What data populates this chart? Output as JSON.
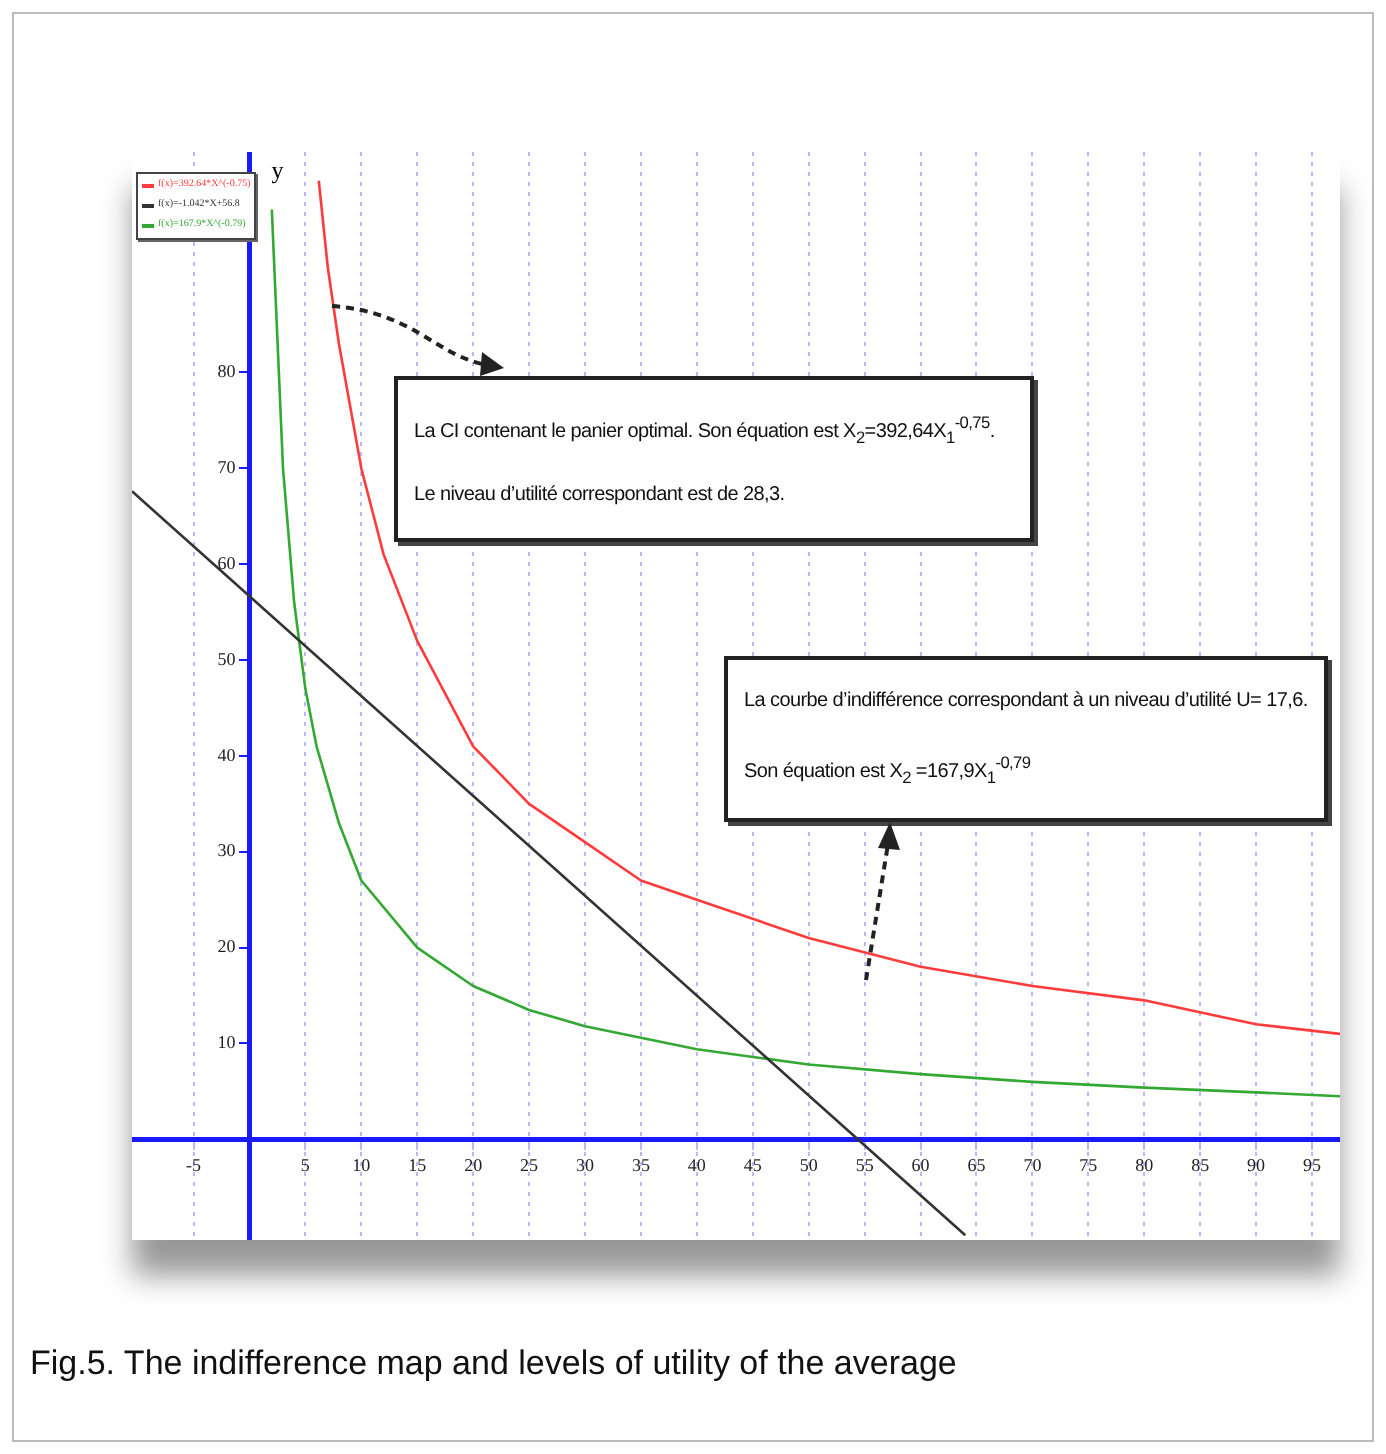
{
  "chart_data": {
    "type": "line",
    "ylabel": "y",
    "xlim": [
      -10.5,
      97.5
    ],
    "ylim": [
      -10.5,
      103
    ],
    "xticks": [
      -5,
      5,
      10,
      15,
      20,
      25,
      30,
      35,
      40,
      45,
      50,
      55,
      60,
      65,
      70,
      75,
      80,
      85,
      90,
      95
    ],
    "yticks": [
      10,
      20,
      30,
      40,
      50,
      60,
      70,
      80
    ],
    "grid": "x",
    "legend": "top left",
    "marker": "none",
    "line_style": "solid",
    "series": [
      {
        "name": "f(x)=392.64*X^(-0.75)",
        "color": "#ff3b3b",
        "x": [
          6.2,
          7,
          8,
          10,
          12,
          15,
          20,
          25,
          30,
          35,
          40,
          50,
          60,
          70,
          80,
          90,
          97.5
        ],
        "values": [
          100,
          91,
          83,
          70,
          61,
          52,
          41,
          35,
          31,
          27,
          25,
          21,
          18,
          16,
          14.5,
          12,
          11
        ]
      },
      {
        "name": "f(x)=-1.042*X+56.8",
        "color": "#333333",
        "x": [
          -10.5,
          64
        ],
        "values": [
          67.6,
          -10
        ]
      },
      {
        "name": "f(x)=167.9*X^(-0.79)",
        "color": "#33a833",
        "x": [
          2,
          3,
          4,
          5,
          6,
          8,
          10,
          15,
          20,
          25,
          30,
          40,
          50,
          60,
          70,
          80,
          90,
          97.5
        ],
        "values": [
          97,
          70,
          56,
          47,
          41,
          33,
          27,
          20,
          16,
          13.5,
          11.8,
          9.4,
          7.8,
          6.8,
          6,
          5.4,
          4.9,
          4.5
        ]
      }
    ],
    "annotations": [
      "La CI contenant le panier optimal. Son équation est X$_{2}$=392,64X$_{1}$$^{-0,75}$. Le niveau d’utilité correspondant est de 28,3.",
      "La courbe d’indifférence correspondant à un niveau d’utilité  U= 17,6. Son équation est X$_{2}$ =167,9X$_{1}$$^{-0,79}$",
      "Fig.5. The indifference map and levels of utility of the average"
    ]
  }
}
